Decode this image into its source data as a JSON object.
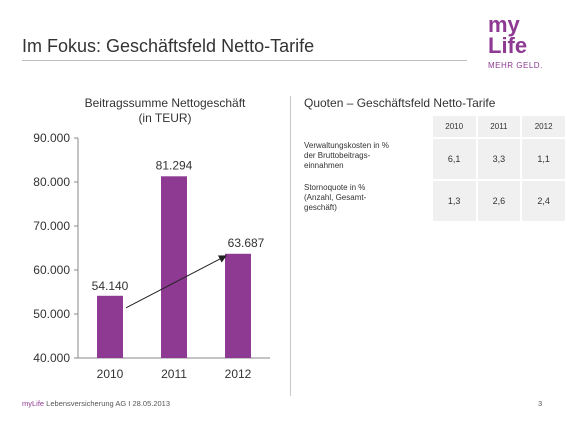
{
  "slide": {
    "title": "Im Fokus: Geschäftsfeld Netto-Tarife",
    "logo": {
      "line1": "my",
      "line2": "Life",
      "tagline": "MEHR GELD."
    },
    "footer_brand": "myLife",
    "footer_text": " Lebensversicherung AG I 28.05.2013",
    "page_number": "3"
  },
  "chart_data": {
    "type": "bar",
    "title": "Beitragssumme Nettogeschäft",
    "subtitle": "(in TEUR)",
    "categories": [
      "2010",
      "2011",
      "2012"
    ],
    "values": [
      54140,
      81294,
      63687
    ],
    "value_labels": [
      "54.140",
      "81.294",
      "63.687"
    ],
    "ylim": [
      40000,
      90000
    ],
    "yticks": [
      40000,
      50000,
      60000,
      70000,
      80000,
      90000
    ],
    "ytick_labels": [
      "40.000",
      "50.000",
      "60.000",
      "70.000",
      "80.000",
      "90.000"
    ],
    "bar_color": "#8e3a93",
    "trend_arrow": {
      "from": "2010",
      "to": "2012"
    },
    "grid": false
  },
  "quoten": {
    "title": "Quoten – Geschäftsfeld Netto-Tarife",
    "years": [
      "2010",
      "2011",
      "2012"
    ],
    "rows": [
      {
        "label_lines": [
          "Verwaltungskosten in %",
          "der Bruttobeitrags-",
          "einnahmen"
        ],
        "values": [
          "6,1",
          "3,3",
          "1,1"
        ]
      },
      {
        "label_lines": [
          "Stornoquote in %",
          "(Anzahl, Gesamt-",
          "geschäft)"
        ],
        "values": [
          "1,3",
          "2,6",
          "2,4"
        ]
      }
    ]
  },
  "colors": {
    "brand": "#8e3a93"
  }
}
